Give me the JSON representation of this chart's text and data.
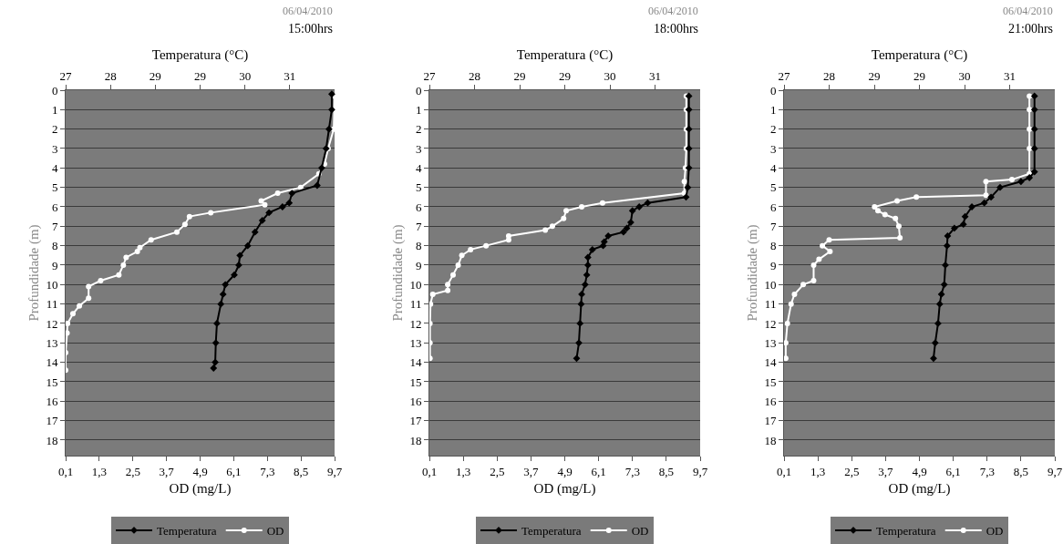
{
  "chart_data": [
    {
      "type": "line",
      "x2label": "Temperatura (°C)",
      "xlabel": "OD (mg/L)",
      "ylabel": "Profundidade (m)",
      "annotations": [
        "06/04/2010",
        "15:00hrs"
      ],
      "grid": "y",
      "legend": "bottom",
      "line_style": "solid",
      "xlim": [
        0.1,
        9.7
      ],
      "xticks": [
        {
          "value": 0.1,
          "label": "0,1"
        },
        {
          "value": 1.3,
          "label": "1,3"
        },
        {
          "value": 2.5,
          "label": "2,5"
        },
        {
          "value": 3.7,
          "label": "3,7"
        },
        {
          "value": 4.9,
          "label": "4,9"
        },
        {
          "value": 6.1,
          "label": "6,1"
        },
        {
          "value": 7.3,
          "label": "7,3"
        },
        {
          "value": 8.5,
          "label": "8,5"
        },
        {
          "value": 9.7,
          "label": "9,7"
        }
      ],
      "x2lim": [
        27,
        31.8
      ],
      "x2ticks": [
        27,
        {
          "value": 27.8,
          "label": "28"
        },
        {
          "value": 28.6,
          "label": "29"
        },
        {
          "value": 29.4,
          "label": "29"
        },
        {
          "value": 30.2,
          "label": "30"
        },
        {
          "value": 31.0,
          "label": "31"
        }
      ],
      "ylim": [
        18.8,
        0
      ],
      "yticks": [
        0,
        1,
        2,
        3,
        4,
        5,
        6,
        7,
        8,
        9,
        10,
        11,
        12,
        13,
        14,
        15,
        16,
        17,
        18
      ],
      "series": [
        {
          "name": "Temperatura",
          "color": "#000000",
          "axis": "x2",
          "marker": "diamond",
          "x": [
            31.75,
            31.75,
            31.7,
            31.65,
            31.57,
            31.49,
            31.04,
            30.99,
            30.87,
            30.63,
            30.51,
            30.38,
            30.25,
            30.11,
            30.09,
            30.01,
            29.85,
            29.81,
            29.77,
            29.7,
            29.68,
            29.67,
            29.64
          ],
          "values": [
            0.2,
            1,
            2,
            3,
            4,
            4.9,
            5.3,
            5.8,
            6.0,
            6.3,
            6.7,
            7.3,
            8.0,
            8.5,
            9.0,
            9.5,
            10.0,
            10.5,
            11,
            12,
            13,
            14,
            14.3
          ]
        },
        {
          "name": "OD",
          "color": "#ffffff",
          "marker": "circle",
          "x": [
            9.7,
            9.67,
            9.47,
            9.34,
            9.14,
            8.49,
            7.67,
            7.08,
            7.21,
            5.28,
            4.52,
            4.36,
            4.07,
            3.15,
            2.75,
            2.66,
            2.26,
            2.16,
            2.0,
            1.35,
            0.92,
            0.92,
            0.59,
            0.36,
            0.17,
            0.15,
            0.1,
            0.1
          ],
          "values": [
            0.3,
            2,
            3,
            3.8,
            4.3,
            5.0,
            5.3,
            5.7,
            5.9,
            6.3,
            6.5,
            6.9,
            7.3,
            7.7,
            8.1,
            8.3,
            8.6,
            9.0,
            9.5,
            9.8,
            10.1,
            10.7,
            11.1,
            11.5,
            12,
            12.5,
            13.5,
            14.4
          ]
        }
      ]
    },
    {
      "type": "line",
      "x2label": "Temperatura (°C)",
      "xlabel": "OD (mg/L)",
      "ylabel": "Profundidade (m)",
      "annotations": [
        "06/04/2010",
        "18:00hrs"
      ],
      "grid": "y",
      "legend": "bottom",
      "line_style": "solid",
      "xlim": [
        0.1,
        9.7
      ],
      "xticks": [
        {
          "value": 0.1,
          "label": "0,1"
        },
        {
          "value": 1.3,
          "label": "1,3"
        },
        {
          "value": 2.5,
          "label": "2,5"
        },
        {
          "value": 3.7,
          "label": "3,7"
        },
        {
          "value": 4.9,
          "label": "4,9"
        },
        {
          "value": 6.1,
          "label": "6,1"
        },
        {
          "value": 7.3,
          "label": "7,3"
        },
        {
          "value": 8.5,
          "label": "8,5"
        },
        {
          "value": 9.7,
          "label": "9,7"
        }
      ],
      "x2lim": [
        27,
        31.8
      ],
      "x2ticks": [
        27,
        {
          "value": 27.8,
          "label": "28"
        },
        {
          "value": 28.6,
          "label": "29"
        },
        {
          "value": 29.4,
          "label": "29"
        },
        {
          "value": 30.2,
          "label": "30"
        },
        {
          "value": 31.0,
          "label": "31"
        }
      ],
      "ylim": [
        18.8,
        0
      ],
      "yticks": [
        0,
        1,
        2,
        3,
        4,
        5,
        6,
        7,
        8,
        9,
        10,
        11,
        12,
        13,
        14,
        15,
        16,
        17,
        18
      ],
      "series": [
        {
          "name": "Temperatura",
          "color": "#000000",
          "axis": "x2",
          "marker": "diamond",
          "x": [
            31.6,
            31.6,
            31.6,
            31.6,
            31.6,
            31.58,
            31.55,
            30.87,
            30.72,
            30.6,
            30.57,
            30.5,
            30.44,
            30.17,
            30.1,
            30.08,
            29.89,
            29.81,
            29.81,
            29.79,
            29.76,
            29.7,
            29.69,
            29.67,
            29.65,
            29.61
          ],
          "values": [
            0.3,
            1,
            2,
            3,
            4,
            5,
            5.5,
            5.8,
            6.0,
            6.2,
            6.8,
            7.1,
            7.3,
            7.5,
            7.8,
            8.0,
            8.2,
            8.6,
            9.0,
            9.5,
            10.0,
            10.5,
            11,
            12,
            13,
            13.8
          ]
        },
        {
          "name": "OD",
          "color": "#ffffff",
          "marker": "circle",
          "x": [
            9.21,
            9.21,
            9.21,
            9.21,
            9.18,
            9.14,
            9.14,
            6.24,
            5.5,
            4.95,
            4.86,
            4.46,
            4.21,
            2.91,
            2.91,
            2.11,
            1.56,
            1.25,
            1.12,
            0.94,
            0.75,
            0.75,
            0.22,
            0.14,
            0.12,
            0.12,
            0.12
          ],
          "values": [
            0.3,
            1,
            2,
            3,
            4,
            4.7,
            5.3,
            5.8,
            6.0,
            6.2,
            6.6,
            7.0,
            7.2,
            7.5,
            7.7,
            8.0,
            8.2,
            8.5,
            9.0,
            9.5,
            10.0,
            10.3,
            10.5,
            11,
            12,
            13,
            13.8
          ]
        }
      ]
    },
    {
      "type": "line",
      "x2label": "Temperatura (°C)",
      "xlabel": "OD (mg/L)",
      "ylabel": "Profundidade (m)",
      "annotations": [
        "06/04/2010",
        "21:00hrs"
      ],
      "grid": "y",
      "legend": "bottom",
      "line_style": "solid",
      "xlim": [
        0.1,
        9.7
      ],
      "xticks": [
        {
          "value": 0.1,
          "label": "0,1"
        },
        {
          "value": 1.3,
          "label": "1,3"
        },
        {
          "value": 2.5,
          "label": "2,5"
        },
        {
          "value": 3.7,
          "label": "3,7"
        },
        {
          "value": 4.9,
          "label": "4,9"
        },
        {
          "value": 6.1,
          "label": "6,1"
        },
        {
          "value": 7.3,
          "label": "7,3"
        },
        {
          "value": 8.5,
          "label": "8,5"
        },
        {
          "value": 9.7,
          "label": "9,7"
        }
      ],
      "x2lim": [
        27,
        31.8
      ],
      "x2ticks": [
        27,
        {
          "value": 27.8,
          "label": "28"
        },
        {
          "value": 28.6,
          "label": "29"
        },
        {
          "value": 29.4,
          "label": "29"
        },
        {
          "value": 30.2,
          "label": "30"
        },
        {
          "value": 31.0,
          "label": "31"
        }
      ],
      "ylim": [
        18.8,
        0
      ],
      "yticks": [
        0,
        1,
        2,
        3,
        4,
        5,
        6,
        7,
        8,
        9,
        10,
        11,
        12,
        13,
        14,
        15,
        16,
        17,
        18
      ],
      "series": [
        {
          "name": "Temperatura",
          "color": "#000000",
          "axis": "x2",
          "marker": "diamond",
          "x": [
            31.44,
            31.44,
            31.44,
            31.44,
            31.44,
            31.35,
            31.2,
            30.83,
            30.67,
            30.55,
            30.33,
            30.21,
            30.18,
            30.02,
            29.9,
            29.89,
            29.86,
            29.84,
            29.79,
            29.76,
            29.73,
            29.68,
            29.65
          ],
          "values": [
            0.3,
            1,
            2,
            3,
            4.2,
            4.5,
            4.7,
            5.0,
            5.5,
            5.8,
            6.0,
            6.5,
            6.9,
            7.1,
            7.5,
            8.0,
            9,
            10,
            10.5,
            11,
            12,
            13,
            13.8
          ]
        },
        {
          "name": "OD",
          "color": "#ffffff",
          "marker": "circle",
          "x": [
            8.8,
            8.8,
            8.8,
            8.8,
            8.8,
            8.18,
            7.26,
            7.26,
            4.79,
            4.11,
            3.31,
            3.43,
            3.68,
            4.05,
            4.17,
            4.21,
            1.7,
            1.46,
            1.73,
            1.34,
            1.15,
            1.15,
            0.78,
            0.47,
            0.35,
            0.22,
            0.16,
            0.16
          ],
          "values": [
            0.3,
            1,
            2,
            3,
            4.3,
            4.6,
            4.7,
            5.4,
            5.5,
            5.7,
            6.0,
            6.2,
            6.4,
            6.6,
            7.0,
            7.6,
            7.7,
            8.0,
            8.3,
            8.7,
            9.0,
            9.8,
            10.0,
            10.5,
            11,
            12,
            13,
            13.8
          ]
        }
      ]
    }
  ]
}
